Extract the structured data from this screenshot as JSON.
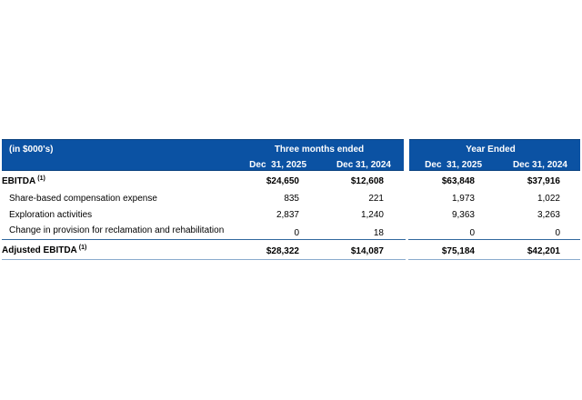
{
  "table": {
    "unit_label": "(in $000's)",
    "groups": [
      {
        "label": "Three months ended",
        "cols": [
          "Dec  31, 2025",
          "Dec 31, 2024"
        ]
      },
      {
        "label": "Year Ended",
        "cols": [
          "Dec  31, 2025",
          "Dec 31, 2024"
        ]
      }
    ],
    "rows": [
      {
        "label": "EBITDA",
        "sup": "(1)",
        "values": [
          "$24,650",
          "$12,608",
          "$63,848",
          "$37,916"
        ]
      },
      {
        "label": "Share-based compensation expense",
        "values": [
          "835",
          "221",
          "1,973",
          "1,022"
        ]
      },
      {
        "label": "Exploration activities",
        "values": [
          "2,837",
          "1,240",
          "9,363",
          "3,263"
        ]
      },
      {
        "label": "Change in provision for reclamation and rehabilitation",
        "values": [
          "0",
          "18",
          "0",
          "0"
        ]
      },
      {
        "label": "Adjusted EBITDA",
        "sup": "(1)",
        "values": [
          "$28,322",
          "$14,087",
          "$75,184",
          "$42,201"
        ]
      }
    ],
    "colors": {
      "header_bg": "#0b52a3",
      "header_edge": "#09407f",
      "header_text": "#ffffff",
      "rule_dark": "#31689e",
      "rule_light": "#8aabce",
      "body_text": "#000000",
      "page_bg": "#ffffff"
    }
  }
}
